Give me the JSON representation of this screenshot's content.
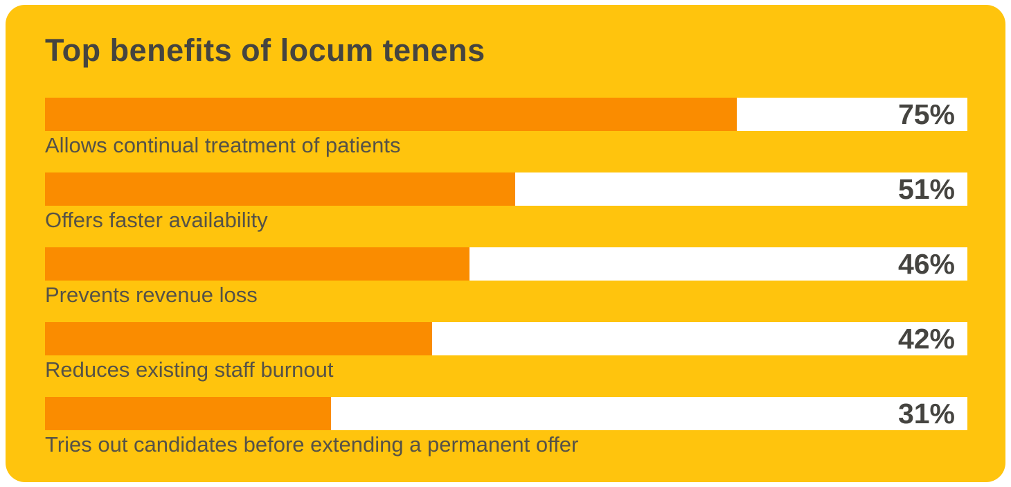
{
  "chart_data": {
    "type": "bar",
    "orientation": "horizontal",
    "title": "Top benefits of locum tenens",
    "categories": [
      "Allows continual treatment of patients",
      "Offers faster availability",
      "Prevents revenue loss",
      "Reduces existing staff burnout",
      "Tries out candidates before extending a permanent offer"
    ],
    "values": [
      75,
      51,
      46,
      42,
      31
    ],
    "unit": "%",
    "xlim": [
      0,
      100
    ],
    "grid": false,
    "legend": false,
    "value_label_position": "inside-track-right"
  },
  "style": {
    "page_background": "#ffffff",
    "card_background": "#ffc40d",
    "bar_fill_color": "#fa8c00",
    "bar_track_color": "#ffffff",
    "title_color": "#454440",
    "label_color": "#565247"
  }
}
